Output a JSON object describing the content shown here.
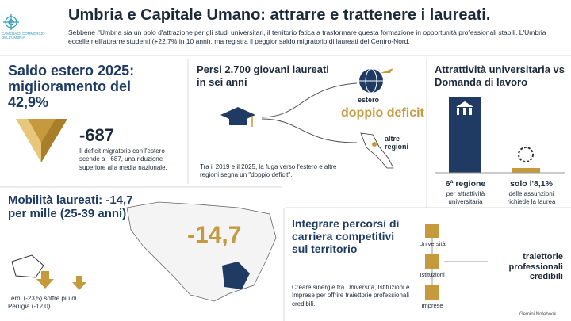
{
  "header": {
    "logo": "CAMERA DI COMMERCIO DELL'UMBRIA",
    "title": "Umbria e Capitale Umano: attrarre e trattenere i laureati.",
    "subtitle": "Sebbene l'Umbria sia un polo d'attrazione per gli studi universitari, il territorio fatica a trasformare questa formazione in opportunità professionali stabili. L'Umbria eccelle nell'attrarre studenti (+22,7% in 10 anni), ma registra il peggior saldo migratorio di laureati del Centro-Nord."
  },
  "panels": [
    {
      "title": "Saldo estero 2025: miglioramento del 42,9%",
      "value": "-687",
      "text": "Il deficit migratorio con l'estero scende a −687, una riduzione superiore alla media nazionale."
    },
    {
      "title": "Persi 2.700 giovani laureati in sei anni",
      "labels": [
        "estero",
        "doppio deficit",
        "altre regioni"
      ],
      "text": "Tra il 2019 e il 2025, la fuga verso l'estero e altre regioni segna un \"doppio deficit\"."
    },
    {
      "title": "Attrattività universitaria vs Domanda di lavoro",
      "stats": [
        {
          "value": "6ª regione",
          "label": "per attrattività universitaria"
        },
        {
          "value": "solo l'8,1%",
          "label": "delle assunzioni richiede la laurea"
        }
      ]
    },
    {
      "title": "Mobilità laureati: -14,7 per mille (25-39 anni)",
      "value": "-14,7",
      "text": "Terni (-23,5) soffre più di Perugia (-12,0)."
    },
    {
      "title": "Integrare percorsi di carriera competitivi sul territorio",
      "text": "Creare sinergie tra Università, Istituzioni e Imprese per offrire traiettorie professionali credibili.",
      "nodes": [
        "Università",
        "Istituzioni",
        "Imprese"
      ],
      "outcome": "traiettorie professionali credibili"
    }
  ],
  "footer": "Gemini Notebook"
}
